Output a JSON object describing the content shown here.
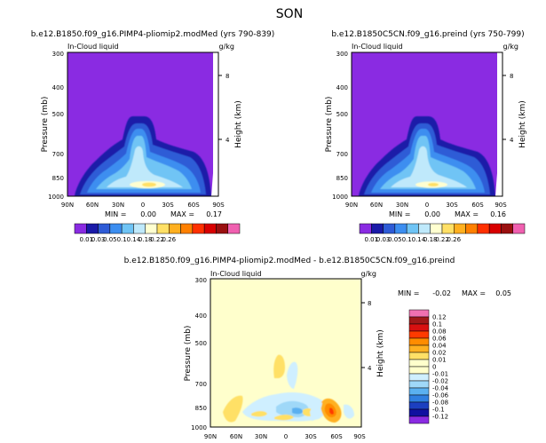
{
  "figure_title": "SON",
  "colors": {
    "background_purple": "#8a2be2",
    "diff_background": "#ffffcc"
  },
  "chart_data": [
    {
      "type": "contour",
      "title": "b.e12.B1850.f09_g16.PIMP4-pliomip2.modMed (yrs 790-839)",
      "subtitle_left": "In-Cloud liquid",
      "subtitle_right": "g/kg",
      "ylabel": "Pressure (mb)",
      "ylabel_right": "Height (km)",
      "xticks": [
        "90N",
        "60N",
        "30N",
        "0",
        "30S",
        "60S",
        "90S"
      ],
      "yticks": [
        "300",
        "400",
        "500",
        "700",
        "850",
        "1000"
      ],
      "yticks_right": [
        "8",
        "4"
      ],
      "stats": {
        "min_label": "MIN =",
        "min": "0.00",
        "max_label": "MAX =",
        "max": "0.17"
      },
      "colorbar": {
        "labels": [
          "0.01",
          "0.03",
          "0.05",
          "0.1",
          "0.14",
          "0.18",
          "0.22",
          "0.26"
        ],
        "fills": [
          "#8a2be2",
          "#1a1aa8",
          "#2e5bd6",
          "#3c8ef0",
          "#6fc4f5",
          "#bfe9fb",
          "#ffffd0",
          "#ffe066",
          "#ffb020",
          "#ff8000",
          "#ff3000",
          "#d80000",
          "#9a1010",
          "#f060b0"
        ]
      }
    },
    {
      "type": "contour",
      "title": "b.e12.B1850C5CN.f09_g16.preind (yrs 750-799)",
      "subtitle_left": "In-Cloud liquid",
      "subtitle_right": "g/kg",
      "ylabel": "Pressure (mb)",
      "ylabel_right": "Height (km)",
      "xticks": [
        "90N",
        "60N",
        "30N",
        "0",
        "30S",
        "60S",
        "90S"
      ],
      "yticks": [
        "300",
        "400",
        "500",
        "700",
        "850",
        "1000"
      ],
      "yticks_right": [
        "8",
        "4"
      ],
      "stats": {
        "min_label": "MIN =",
        "min": "0.00",
        "max_label": "MAX =",
        "max": "0.16"
      },
      "colorbar": {
        "labels": [
          "0.01",
          "0.03",
          "0.05",
          "0.1",
          "0.14",
          "0.18",
          "0.22",
          "0.26"
        ],
        "fills": [
          "#8a2be2",
          "#1a1aa8",
          "#2e5bd6",
          "#3c8ef0",
          "#6fc4f5",
          "#bfe9fb",
          "#ffffd0",
          "#ffe066",
          "#ffb020",
          "#ff8000",
          "#ff3000",
          "#d80000",
          "#9a1010",
          "#f060b0"
        ]
      }
    },
    {
      "type": "contour",
      "title": "b.e12.B1850.f09_g16.PIMP4-pliomip2.modMed - b.e12.B1850C5CN.f09_g16.preind",
      "subtitle_left": "In-Cloud liquid",
      "subtitle_right": "g/kg",
      "ylabel": "Pressure (mb)",
      "ylabel_right": "Height (km)",
      "xticks": [
        "90N",
        "60N",
        "30N",
        "0",
        "30S",
        "60S",
        "90S"
      ],
      "yticks": [
        "300",
        "400",
        "500",
        "700",
        "850",
        "1000"
      ],
      "yticks_right": [
        "8",
        "4"
      ],
      "stats": {
        "min_label": "MIN =",
        "min": "-0.02",
        "max_label": "MAX =",
        "max": "0.05"
      },
      "colorbar": {
        "labels": [
          "0.12",
          "0.1",
          "0.08",
          "0.06",
          "0.04",
          "0.02",
          "0.01",
          "0",
          "-0.01",
          "-0.02",
          "-0.04",
          "-0.06",
          "-0.08",
          "-0.1",
          "-0.12"
        ],
        "fills": [
          "#f070b0",
          "#a01818",
          "#d81010",
          "#ff3a00",
          "#ff8c00",
          "#ffb020",
          "#ffe066",
          "#ffffcc",
          "#ffffcc",
          "#cfefff",
          "#9fd8f8",
          "#5ab0f0",
          "#2f7fe0",
          "#1c3fc0",
          "#1010a0",
          "#8a2be2"
        ]
      }
    }
  ]
}
